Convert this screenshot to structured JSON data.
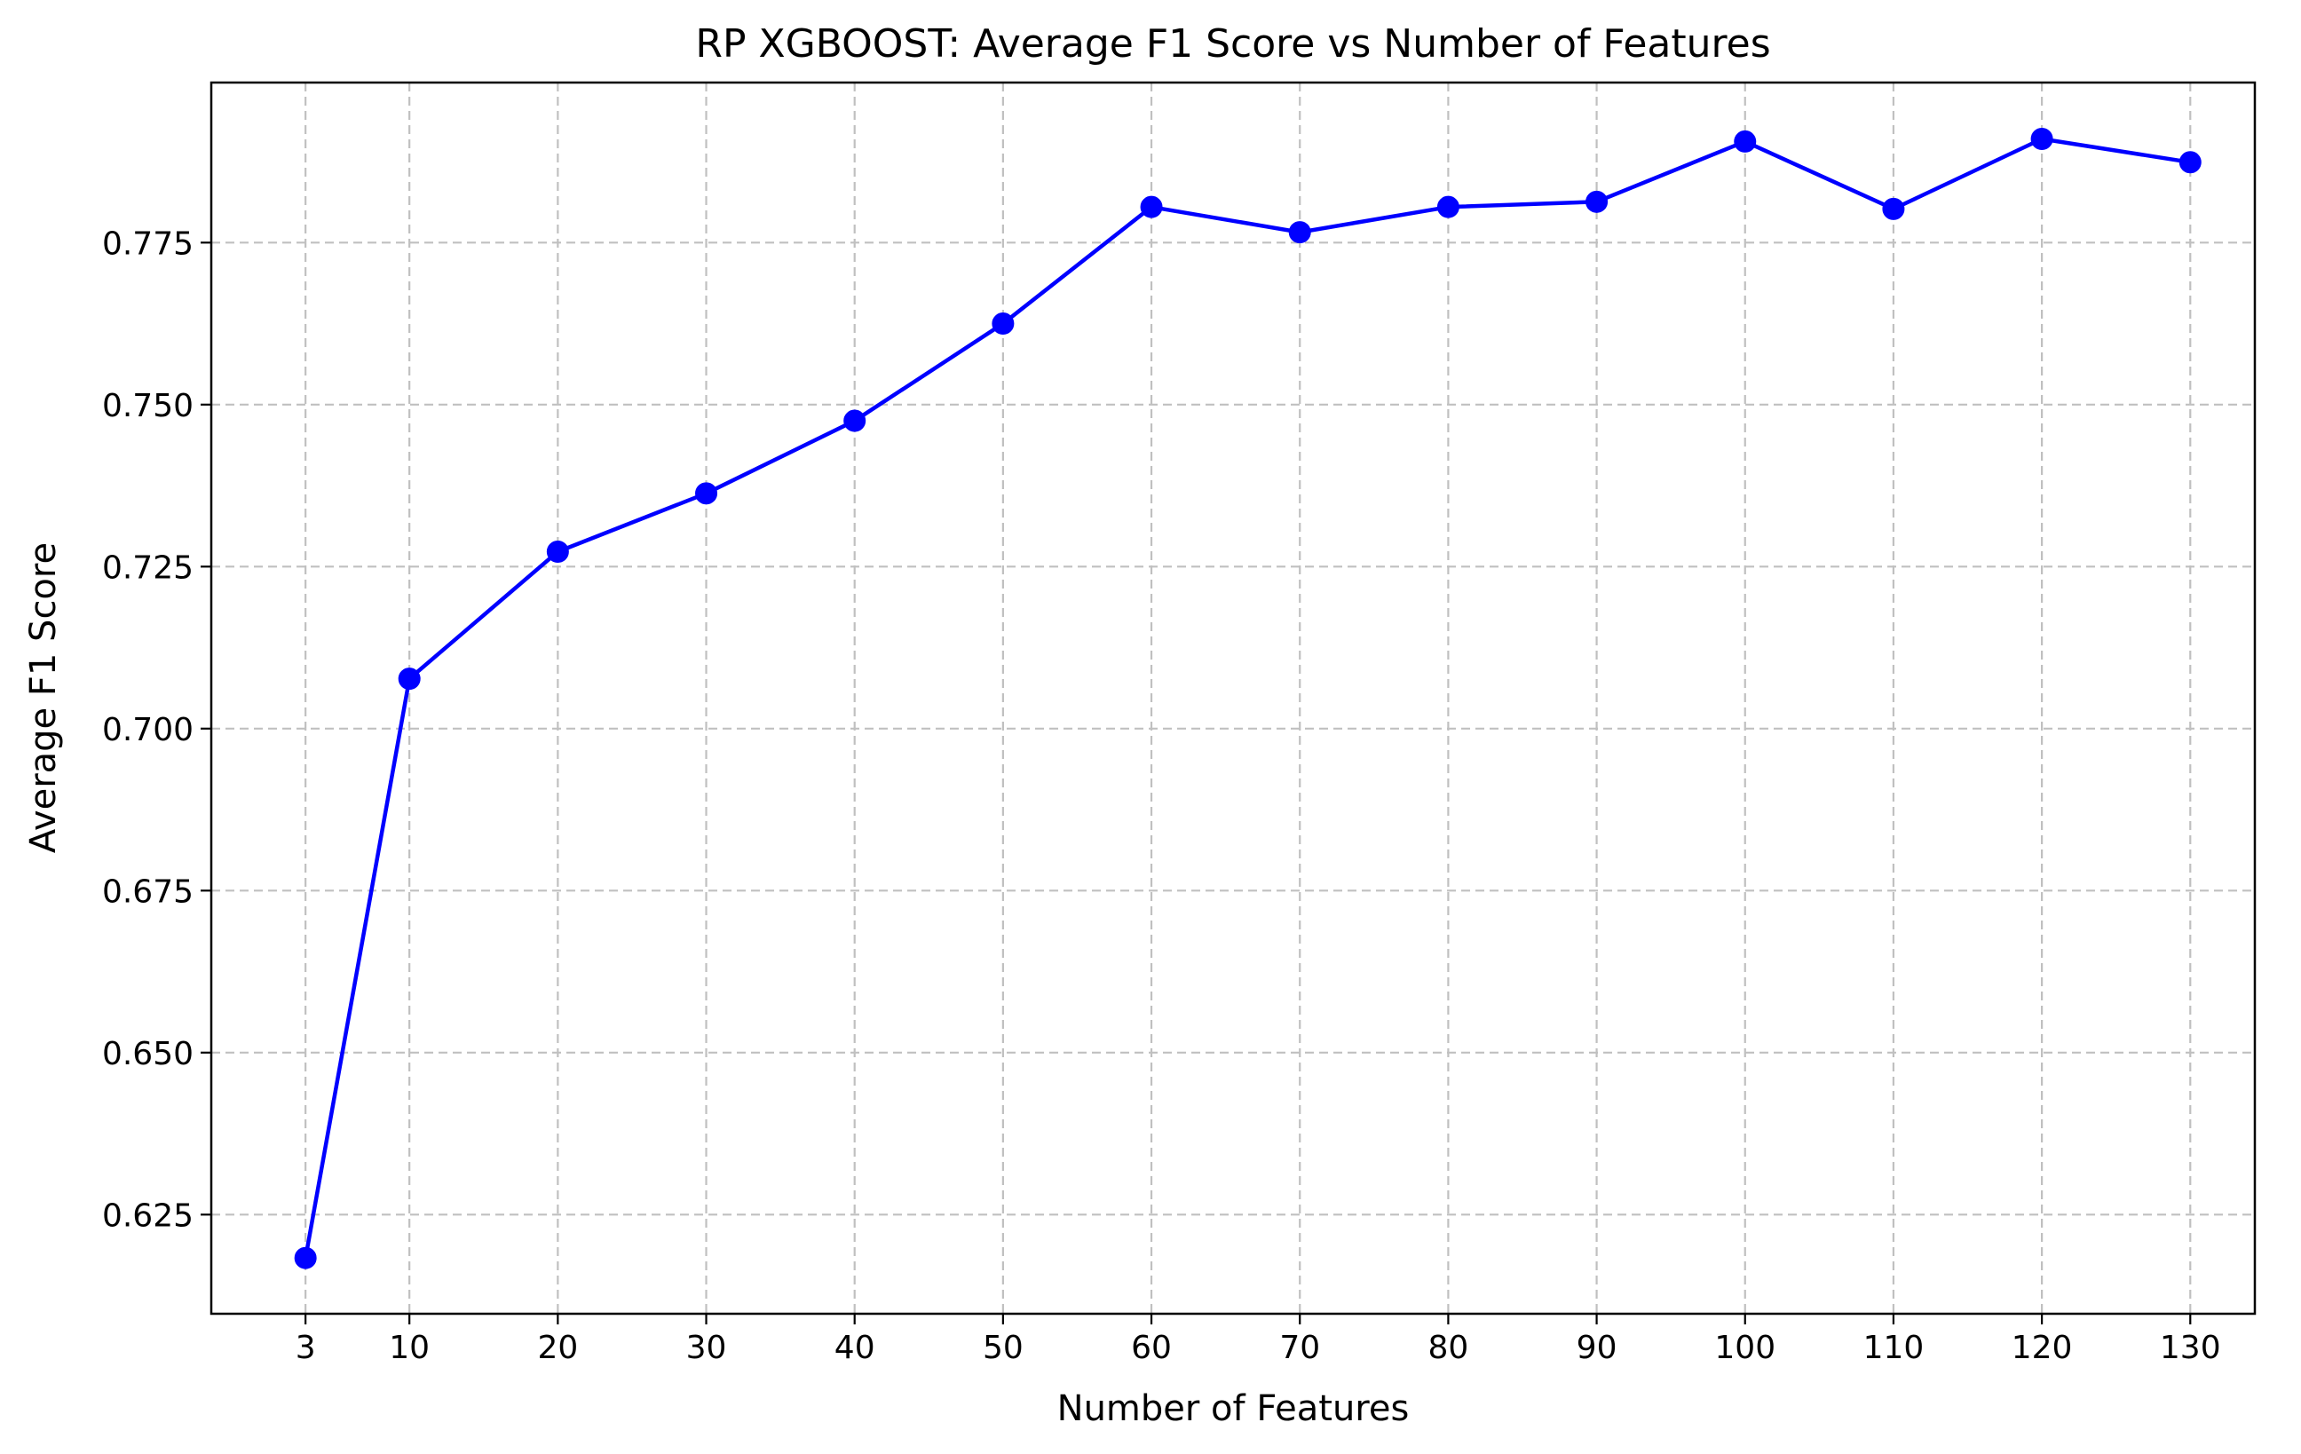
{
  "chart_data": {
    "type": "line",
    "title": "RP XGBOOST: Average F1 Score vs Number of Features",
    "xlabel": "Number of Features",
    "ylabel": "Average F1 Score",
    "x": [
      3,
      10,
      20,
      30,
      40,
      50,
      60,
      70,
      80,
      90,
      100,
      110,
      120,
      130
    ],
    "series": [
      {
        "values": [
          0.6183,
          0.7077,
          0.7273,
          0.7363,
          0.7475,
          0.7625,
          0.7805,
          0.7766,
          0.7805,
          0.7813,
          0.7906,
          0.7802,
          0.791,
          0.7874
        ],
        "color": "#0000ff",
        "marker": "circle"
      }
    ],
    "xticks": [
      3,
      10,
      20,
      30,
      40,
      50,
      60,
      70,
      80,
      90,
      100,
      110,
      120,
      130
    ],
    "xtick_labels": [
      "3",
      "10",
      "20",
      "30",
      "40",
      "50",
      "60",
      "70",
      "80",
      "90",
      "100",
      "110",
      "120",
      "130"
    ],
    "yticks": [
      0.625,
      0.65,
      0.675,
      0.7,
      0.725,
      0.75,
      0.775
    ],
    "ytick_labels": [
      "0.625",
      "0.650",
      "0.675",
      "0.700",
      "0.725",
      "0.750",
      "0.775"
    ],
    "xlim": [
      -3.35,
      134.35
    ],
    "ylim": [
      0.6097,
      0.7997
    ],
    "grid": true,
    "legend": false
  }
}
